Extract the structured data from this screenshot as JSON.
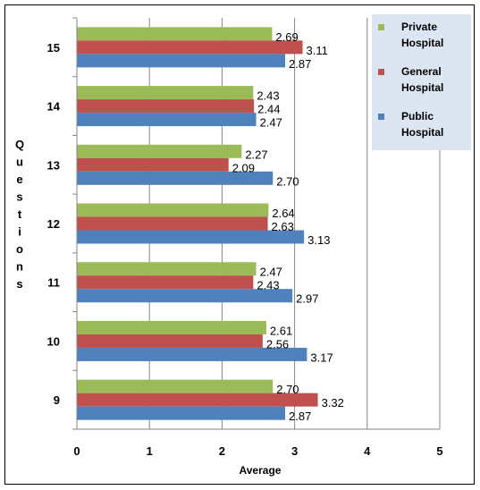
{
  "chart_data": {
    "type": "bar",
    "orientation": "horizontal",
    "categories": [
      "15",
      "14",
      "13",
      "12",
      "11",
      "10",
      "9"
    ],
    "series": [
      {
        "name": "Private Hospital",
        "color": "#9bbb59",
        "values": [
          2.69,
          2.43,
          2.27,
          2.64,
          2.47,
          2.61,
          2.7
        ]
      },
      {
        "name": "General Hospital",
        "color": "#c0504d",
        "values": [
          3.11,
          2.44,
          2.09,
          2.63,
          2.43,
          2.56,
          3.32
        ]
      },
      {
        "name": "Public Hospital",
        "color": "#4f81bd",
        "values": [
          2.87,
          2.47,
          2.7,
          3.13,
          2.97,
          3.17,
          2.87
        ]
      }
    ],
    "value_labels": [
      [
        "2.69",
        "2.43",
        "2.27",
        "2.64",
        "2.47",
        "2.61",
        "2.70"
      ],
      [
        "3.11",
        "2.44",
        "2.09",
        "2.63",
        "2.43",
        "2.56",
        "3.32"
      ],
      [
        "2.87",
        "2.47",
        "2.70",
        "3.13",
        "2.97",
        "3.17",
        "2.87"
      ]
    ],
    "xlabel": "Average",
    "ylabel": "Questions",
    "xlim": [
      0,
      5
    ],
    "xticks": [
      "0",
      "1",
      "2",
      "3",
      "4",
      "5"
    ],
    "grid": "vertical",
    "legend_position": "top-right",
    "legend_background": "#dce6f2"
  }
}
